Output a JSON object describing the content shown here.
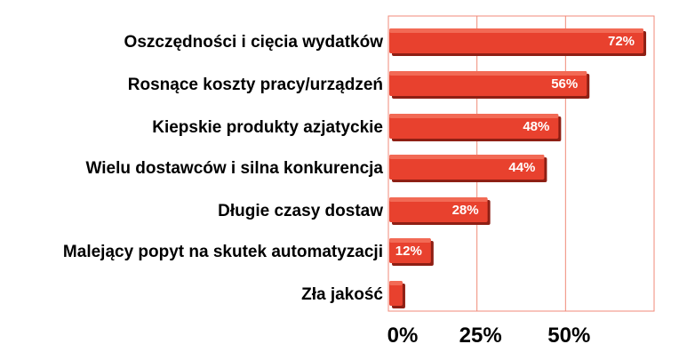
{
  "chart_data": {
    "type": "bar",
    "orientation": "horizontal",
    "categories": [
      "Oszczędności i cięcia wydatków",
      "Rosnące koszty pracy/urządzeń",
      "Kiepskie produkty azjatyckie",
      "Wielu dostawców i silna konkurencja",
      "Długie czasy dostaw",
      "Malejący popyt na skutek automatyzacji",
      "Zła jakość"
    ],
    "values": [
      72,
      56,
      48,
      44,
      28,
      12,
      4
    ],
    "data_labels": [
      "72%",
      "56%",
      "48%",
      "44%",
      "28%",
      "12%",
      ""
    ],
    "xticks": [
      0,
      25,
      50
    ],
    "xtick_labels": [
      "0%",
      "25%",
      "50%"
    ],
    "xlim": [
      0,
      75
    ],
    "grid": true,
    "colors": {
      "bar": "#e8412e",
      "bar_top": "#f26a55",
      "bar_shadow": "#8e1f14",
      "grid": "#f08a78",
      "frame": "#f08a78"
    }
  }
}
